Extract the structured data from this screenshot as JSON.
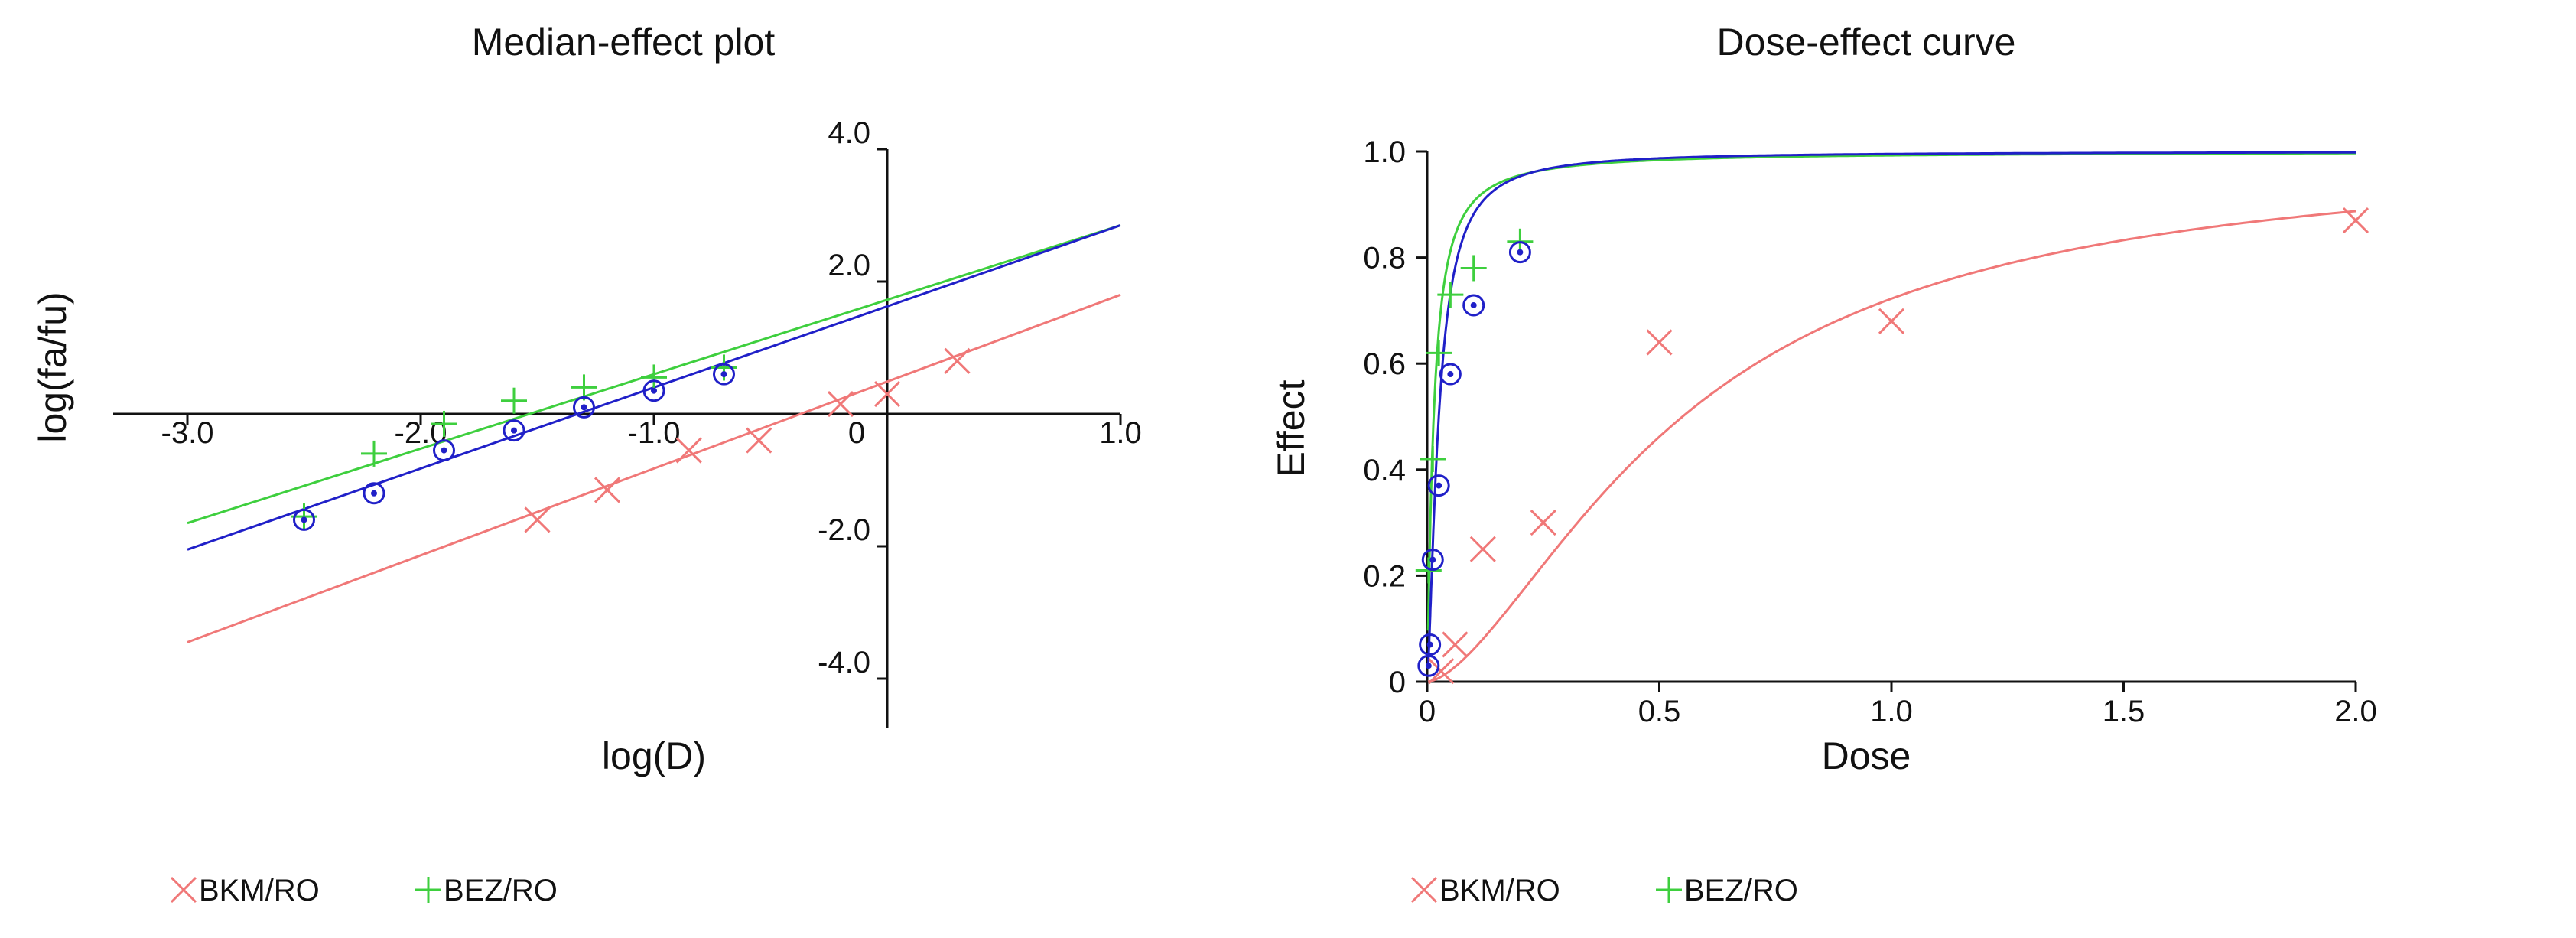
{
  "chart_data": [
    {
      "type": "scatter",
      "title": "Median-effect plot",
      "xlabel": "log(D)",
      "ylabel": "log(fa/fu)",
      "xlim": [
        -3.3,
        1.0
      ],
      "ylim": [
        -4.8,
        4.0
      ],
      "xticks": [
        {
          "value": -3.0,
          "label": "-3.0"
        },
        {
          "value": -2.0,
          "label": "-2.0"
        },
        {
          "value": -1.0,
          "label": "-1.0"
        },
        {
          "value": 0.0,
          "label": "0"
        },
        {
          "value": 1.0,
          "label": "1.0"
        }
      ],
      "yticks": [
        {
          "value": 4.0,
          "label": "4.0"
        },
        {
          "value": 2.0,
          "label": "2.0"
        },
        {
          "value": -2.0,
          "label": "-2.0"
        },
        {
          "value": -4.0,
          "label": "-4.0"
        }
      ],
      "grid": false,
      "legend_position": "bottom-left",
      "legend": [
        {
          "label": "BKM/RO",
          "marker": "x",
          "color": "#f07878"
        },
        {
          "label": "BEZ/RO",
          "marker": "+",
          "color": "#3ecf3e"
        }
      ],
      "series": [
        {
          "name": "BKM/RO",
          "marker": "x",
          "color": "#f07878",
          "points": [
            [
              -1.5,
              -1.6
            ],
            [
              -1.2,
              -1.15
            ],
            [
              -0.85,
              -0.55
            ],
            [
              -0.55,
              -0.4
            ],
            [
              -0.2,
              0.15
            ],
            [
              0.0,
              0.3
            ],
            [
              0.3,
              0.8
            ]
          ],
          "fit": [
            [
              -3.0,
              -3.45
            ],
            [
              1.0,
              1.8
            ]
          ]
        },
        {
          "name": "BEZ/RO",
          "marker": "+",
          "color": "#3ecf3e",
          "points": [
            [
              -2.5,
              -1.55
            ],
            [
              -2.2,
              -0.6
            ],
            [
              -1.9,
              -0.15
            ],
            [
              -1.6,
              0.2
            ],
            [
              -1.3,
              0.4
            ],
            [
              -1.0,
              0.55
            ],
            [
              -0.7,
              0.7
            ]
          ],
          "fit": [
            [
              -3.0,
              -1.65
            ],
            [
              1.0,
              2.85
            ]
          ]
        },
        {
          "marker": "circle-dot",
          "color": "#2020c8",
          "points": [
            [
              -2.5,
              -1.6
            ],
            [
              -2.2,
              -1.2
            ],
            [
              -1.9,
              -0.55
            ],
            [
              -1.6,
              -0.25
            ],
            [
              -1.3,
              0.1
            ],
            [
              -1.0,
              0.35
            ],
            [
              -0.7,
              0.6
            ]
          ],
          "fit": [
            [
              -3.0,
              -2.05
            ],
            [
              1.0,
              2.85
            ]
          ]
        }
      ]
    },
    {
      "type": "scatter",
      "title": "Dose-effect curve",
      "xlabel": "Dose",
      "ylabel": "Effect",
      "xlim": [
        0,
        2.0
      ],
      "ylim": [
        0,
        1.0
      ],
      "xticks": [
        {
          "value": 0.0,
          "label": "0"
        },
        {
          "value": 0.5,
          "label": "0.5"
        },
        {
          "value": 1.0,
          "label": "1.0"
        },
        {
          "value": 1.5,
          "label": "1.5"
        },
        {
          "value": 2.0,
          "label": "2.0"
        }
      ],
      "yticks": [
        {
          "value": 0.0,
          "label": "0"
        },
        {
          "value": 0.2,
          "label": "0.2"
        },
        {
          "value": 0.4,
          "label": "0.4"
        },
        {
          "value": 0.6,
          "label": "0.6"
        },
        {
          "value": 0.8,
          "label": "0.8"
        },
        {
          "value": 1.0,
          "label": "1.0"
        }
      ],
      "grid": false,
      "legend_position": "bottom-left",
      "legend": [
        {
          "label": "BKM/RO",
          "marker": "x",
          "color": "#f07878"
        },
        {
          "label": "BEZ/RO",
          "marker": "+",
          "color": "#3ecf3e"
        }
      ],
      "series": [
        {
          "name": "BKM/RO",
          "marker": "x",
          "color": "#f07878",
          "points": [
            [
              0.03,
              0.02
            ],
            [
              0.06,
              0.07
            ],
            [
              0.12,
              0.25
            ],
            [
              0.25,
              0.3
            ],
            [
              0.5,
              0.64
            ],
            [
              1.0,
              0.68
            ],
            [
              2.0,
              0.87
            ]
          ],
          "curve": {
            "dm": 0.55,
            "m": 1.6
          }
        },
        {
          "name": "BEZ/RO",
          "marker": "+",
          "color": "#3ecf3e",
          "points": [
            [
              0.003,
              0.21
            ],
            [
              0.012,
              0.42
            ],
            [
              0.025,
              0.62
            ],
            [
              0.05,
              0.73
            ],
            [
              0.1,
              0.78
            ],
            [
              0.2,
              0.83
            ]
          ],
          "curve": {
            "dm": 0.014,
            "m": 1.15
          }
        },
        {
          "marker": "circle-dot",
          "color": "#2020c8",
          "points": [
            [
              0.003,
              0.03
            ],
            [
              0.006,
              0.07
            ],
            [
              0.012,
              0.23
            ],
            [
              0.025,
              0.37
            ],
            [
              0.05,
              0.58
            ],
            [
              0.1,
              0.71
            ],
            [
              0.2,
              0.81
            ]
          ],
          "curve": {
            "dm": 0.025,
            "m": 1.45
          }
        }
      ]
    }
  ]
}
